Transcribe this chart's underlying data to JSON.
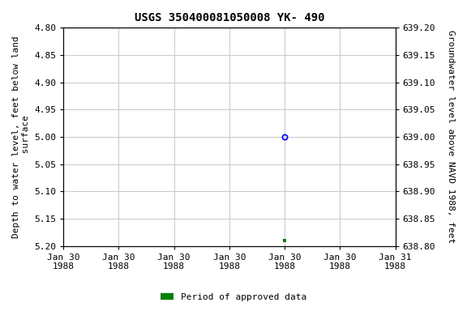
{
  "title": "USGS 350400081050008 YK- 490",
  "left_ylabel": "Depth to water level, feet below land\n surface",
  "right_ylabel": "Groundwater level above NAVD 1988, feet",
  "ylim_left": [
    4.8,
    5.2
  ],
  "ylim_right": [
    638.8,
    639.2
  ],
  "yticks_left": [
    4.8,
    4.85,
    4.9,
    4.95,
    5.0,
    5.05,
    5.1,
    5.15,
    5.2
  ],
  "yticks_right": [
    638.8,
    638.85,
    638.9,
    638.95,
    639.0,
    639.05,
    639.1,
    639.15,
    639.2
  ],
  "data_points": [
    {
      "x": 4.0,
      "depth": 5.0,
      "marker": "circle",
      "color": "blue"
    },
    {
      "x": 4.0,
      "depth": 5.19,
      "marker": "square",
      "color": "green"
    }
  ],
  "xlim": [
    0.0,
    6.0
  ],
  "x_tick_positions": [
    0,
    1,
    2,
    3,
    4,
    5,
    6
  ],
  "x_tick_labels": [
    "Jan 30\n1988",
    "Jan 30\n1988",
    "Jan 30\n1988",
    "Jan 30\n1988",
    "Jan 30\n1988",
    "Jan 30\n1988",
    "Jan 31\n1988"
  ],
  "legend_label": "Period of approved data",
  "legend_color": "#008000",
  "background_color": "#ffffff",
  "grid_color": "#c8c8c8",
  "title_fontsize": 10,
  "label_fontsize": 8,
  "tick_fontsize": 8
}
